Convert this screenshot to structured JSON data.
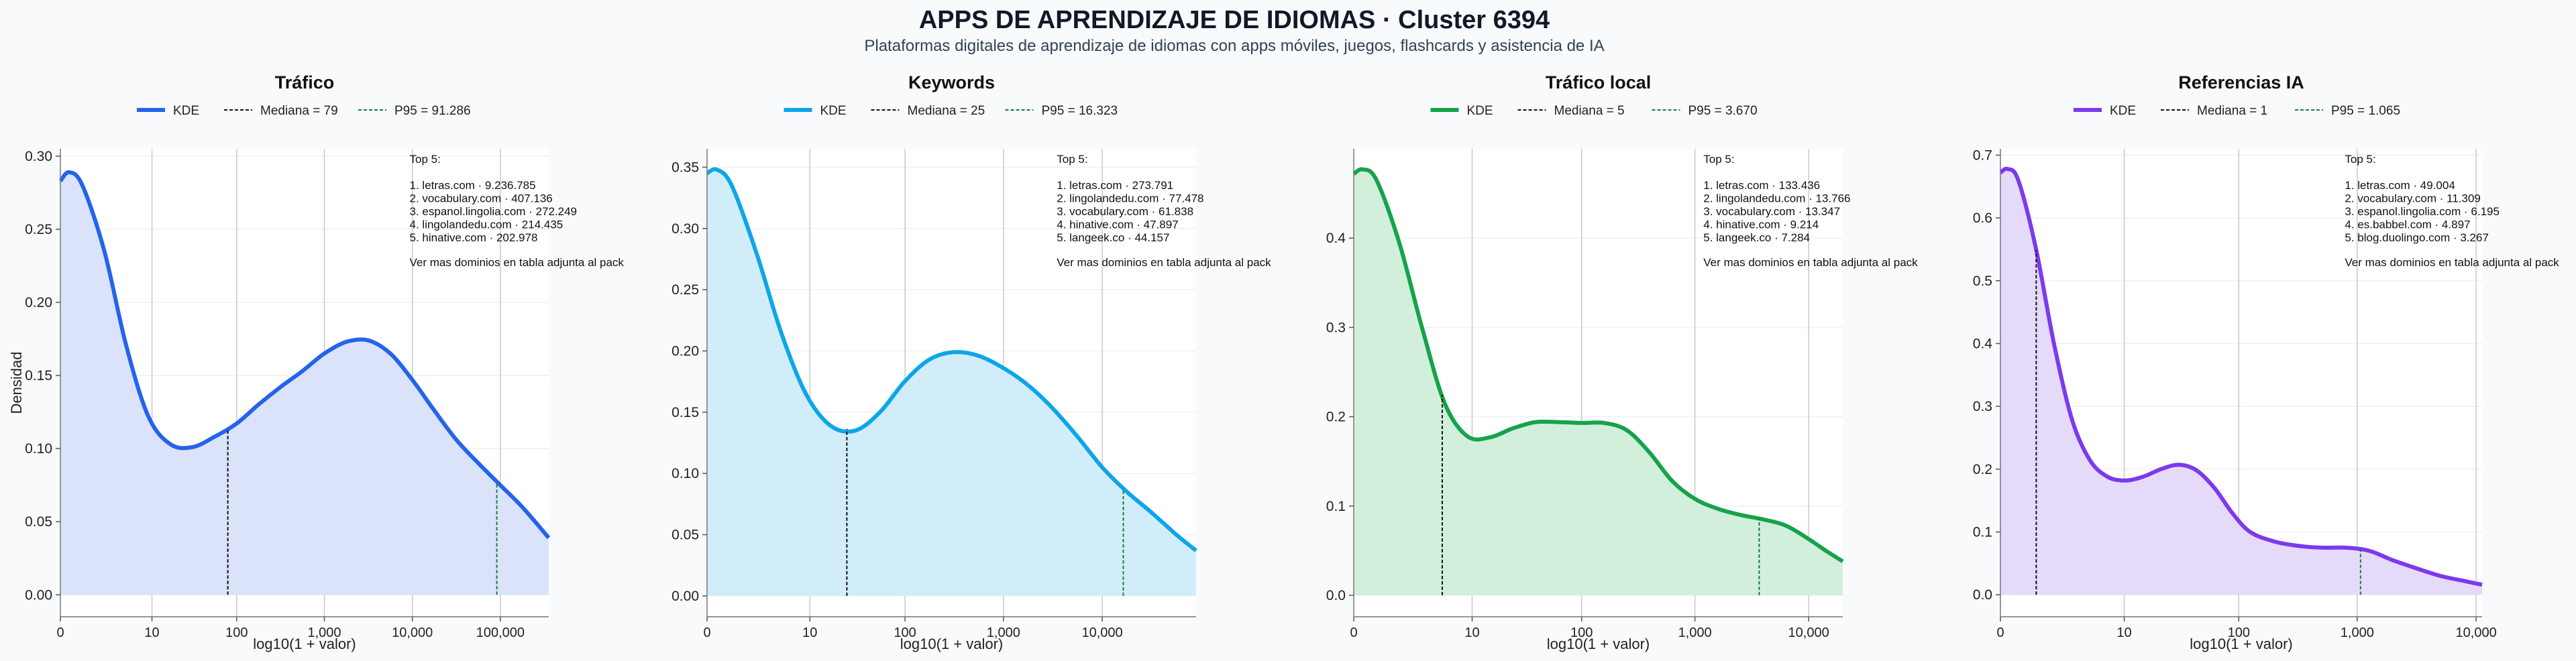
{
  "figure": {
    "title": "APPS DE APRENDIZAJE DE IDIOMAS · Cluster 6394",
    "subtitle": "Plataformas digitales de aprendizaje de idiomas con apps móviles, juegos, flashcards y asistencia de IA"
  },
  "chart_data": [
    {
      "type": "area",
      "title": "Tráfico",
      "xlabel": "log10(1 + valor)",
      "ylabel": "Densidad",
      "color": "#2563eb",
      "fill": "#dbe3fb",
      "xlim": [
        0,
        5.55
      ],
      "ylim": [
        -0.015,
        0.305
      ],
      "xticks": [
        {
          "v": 0,
          "label": "0"
        },
        {
          "v": 1.041,
          "label": "10"
        },
        {
          "v": 2.004,
          "label": "100"
        },
        {
          "v": 3.0,
          "label": "1,000"
        },
        {
          "v": 4.0,
          "label": "10,000"
        },
        {
          "v": 5.0,
          "label": "100,000"
        }
      ],
      "yticks": [
        {
          "v": 0,
          "label": "0.00"
        },
        {
          "v": 0.05,
          "label": "0.05"
        },
        {
          "v": 0.1,
          "label": "0.10"
        },
        {
          "v": 0.15,
          "label": "0.15"
        },
        {
          "v": 0.2,
          "label": "0.20"
        },
        {
          "v": 0.25,
          "label": "0.25"
        },
        {
          "v": 0.3,
          "label": "0.30"
        }
      ],
      "x": [
        0,
        0.1,
        0.25,
        0.5,
        0.75,
        1.0,
        1.25,
        1.5,
        1.75,
        2.0,
        2.25,
        2.5,
        2.75,
        3.0,
        3.25,
        3.5,
        3.75,
        4.0,
        4.25,
        4.5,
        4.75,
        5.0,
        5.25,
        5.55
      ],
      "y": [
        0.283,
        0.289,
        0.28,
        0.235,
        0.17,
        0.122,
        0.103,
        0.101,
        0.108,
        0.117,
        0.13,
        0.142,
        0.153,
        0.165,
        0.173,
        0.174,
        0.165,
        0.147,
        0.126,
        0.106,
        0.09,
        0.075,
        0.06,
        0.039
      ],
      "legend": {
        "kde": "KDE",
        "median": "Mediana = 79",
        "p95": "P95 = 91.286"
      },
      "median_x": 1.903,
      "p95_x": 4.96,
      "p95_color": "#15803d",
      "top_title": "Top 5:",
      "top": [
        "1. letras.com · 9.236.785",
        "2. vocabulary.com · 407.136",
        "3. espanol.lingolia.com · 272.249",
        "4. lingolandedu.com · 214.435",
        "5. hinative.com · 202.978"
      ],
      "note": "Ver mas dominios en tabla adjunta al pack"
    },
    {
      "type": "area",
      "title": "Keywords",
      "xlabel": "log10(1 + valor)",
      "ylabel": "",
      "color": "#0ea5e9",
      "fill": "#d2edfa",
      "xlim": [
        0,
        4.95
      ],
      "ylim": [
        -0.017,
        0.365
      ],
      "xticks": [
        {
          "v": 0,
          "label": "0"
        },
        {
          "v": 1.041,
          "label": "10"
        },
        {
          "v": 2.004,
          "label": "100"
        },
        {
          "v": 3.0,
          "label": "1,000"
        },
        {
          "v": 4.0,
          "label": "10,000"
        }
      ],
      "yticks": [
        {
          "v": 0,
          "label": "0.00"
        },
        {
          "v": 0.05,
          "label": "0.05"
        },
        {
          "v": 0.1,
          "label": "0.10"
        },
        {
          "v": 0.15,
          "label": "0.15"
        },
        {
          "v": 0.2,
          "label": "0.20"
        },
        {
          "v": 0.25,
          "label": "0.25"
        },
        {
          "v": 0.3,
          "label": "0.30"
        },
        {
          "v": 0.35,
          "label": "0.35"
        }
      ],
      "x": [
        0,
        0.1,
        0.25,
        0.5,
        0.75,
        1.0,
        1.25,
        1.5,
        1.75,
        2.0,
        2.25,
        2.5,
        2.75,
        3.0,
        3.25,
        3.5,
        3.75,
        4.0,
        4.25,
        4.5,
        4.75,
        4.95
      ],
      "y": [
        0.345,
        0.348,
        0.335,
        0.28,
        0.215,
        0.165,
        0.139,
        0.135,
        0.15,
        0.175,
        0.193,
        0.199,
        0.196,
        0.186,
        0.172,
        0.153,
        0.13,
        0.105,
        0.085,
        0.068,
        0.05,
        0.037
      ],
      "legend": {
        "kde": "KDE",
        "median": "Mediana = 25",
        "p95": "P95 = 16.323"
      },
      "median_x": 1.415,
      "p95_x": 4.213,
      "p95_color": "#15803d",
      "top_title": "Top 5:",
      "top": [
        "1. letras.com · 273.791",
        "2. lingolandedu.com · 77.478",
        "3. vocabulary.com · 61.838",
        "4. hinative.com · 47.897",
        "5. langeek.co · 44.157"
      ],
      "note": "Ver mas dominios en tabla adjunta al pack"
    },
    {
      "type": "area",
      "title": "Tráfico local",
      "xlabel": "log10(1 + valor)",
      "ylabel": "",
      "color": "#16a34a",
      "fill": "#d2efdc",
      "xlim": [
        0,
        4.3
      ],
      "ylim": [
        -0.024,
        0.5
      ],
      "xticks": [
        {
          "v": 0,
          "label": "0"
        },
        {
          "v": 1.041,
          "label": "10"
        },
        {
          "v": 2.004,
          "label": "100"
        },
        {
          "v": 3.0,
          "label": "1,000"
        },
        {
          "v": 4.0,
          "label": "10,000"
        }
      ],
      "yticks": [
        {
          "v": 0,
          "label": "0.0"
        },
        {
          "v": 0.1,
          "label": "0.1"
        },
        {
          "v": 0.2,
          "label": "0.2"
        },
        {
          "v": 0.3,
          "label": "0.3"
        },
        {
          "v": 0.4,
          "label": "0.4"
        }
      ],
      "x": [
        0,
        0.08,
        0.2,
        0.4,
        0.6,
        0.8,
        1.0,
        1.2,
        1.4,
        1.6,
        1.8,
        2.0,
        2.2,
        2.4,
        2.6,
        2.8,
        3.0,
        3.2,
        3.4,
        3.6,
        3.8,
        4.0,
        4.15,
        4.3
      ],
      "y": [
        0.472,
        0.477,
        0.465,
        0.395,
        0.3,
        0.215,
        0.178,
        0.177,
        0.187,
        0.194,
        0.194,
        0.193,
        0.193,
        0.185,
        0.16,
        0.128,
        0.108,
        0.097,
        0.09,
        0.085,
        0.078,
        0.063,
        0.05,
        0.038
      ],
      "legend": {
        "kde": "KDE",
        "median": "Mediana = 5",
        "p95": "P95 = 3.670"
      },
      "median_x": 0.778,
      "p95_x": 3.565,
      "p95_color": "#15803d",
      "top_title": "Top 5:",
      "top": [
        "1. letras.com · 133.436",
        "2. lingolandedu.com · 13.766",
        "3. vocabulary.com · 13.347",
        "4. hinative.com · 9.214",
        "5. langeek.co · 7.284"
      ],
      "note": "Ver mas dominios en tabla adjunta al pack"
    },
    {
      "type": "area",
      "title": "Referencias IA",
      "xlabel": "log10(1 + valor)",
      "ylabel": "",
      "color": "#7c3aed",
      "fill": "#e5dafa",
      "xlim": [
        0,
        4.05
      ],
      "ylim": [
        -0.035,
        0.71
      ],
      "xticks": [
        {
          "v": 0,
          "label": "0"
        },
        {
          "v": 1.041,
          "label": "10"
        },
        {
          "v": 2.004,
          "label": "100"
        },
        {
          "v": 3.0,
          "label": "1,000"
        },
        {
          "v": 4.0,
          "label": "10,000"
        }
      ],
      "yticks": [
        {
          "v": 0,
          "label": "0.0"
        },
        {
          "v": 0.1,
          "label": "0.1"
        },
        {
          "v": 0.2,
          "label": "0.2"
        },
        {
          "v": 0.3,
          "label": "0.3"
        },
        {
          "v": 0.4,
          "label": "0.4"
        },
        {
          "v": 0.5,
          "label": "0.5"
        },
        {
          "v": 0.6,
          "label": "0.6"
        },
        {
          "v": 0.7,
          "label": "0.7"
        }
      ],
      "x": [
        0,
        0.06,
        0.15,
        0.3,
        0.45,
        0.6,
        0.75,
        0.9,
        1.05,
        1.2,
        1.35,
        1.5,
        1.65,
        1.8,
        1.95,
        2.1,
        2.3,
        2.5,
        2.7,
        2.9,
        3.1,
        3.3,
        3.5,
        3.7,
        3.9,
        4.05
      ],
      "y": [
        0.672,
        0.678,
        0.66,
        0.55,
        0.4,
        0.28,
        0.215,
        0.188,
        0.182,
        0.188,
        0.2,
        0.207,
        0.198,
        0.17,
        0.13,
        0.1,
        0.085,
        0.078,
        0.075,
        0.075,
        0.07,
        0.055,
        0.042,
        0.03,
        0.022,
        0.016
      ],
      "legend": {
        "kde": "KDE",
        "median": "Mediana = 1",
        "p95": "P95 = 1.065"
      },
      "median_x": 0.301,
      "p95_x": 3.028,
      "p95_color": "#15803d",
      "top_title": "Top 5:",
      "top": [
        "1. letras.com · 49.004",
        "2. vocabulary.com · 11.309",
        "3. espanol.lingolia.com · 6.195",
        "4. es.babbel.com · 4.897",
        "5. blog.duolingo.com · 3.267"
      ],
      "note": "Ver mas dominios en tabla adjunta al pack"
    }
  ]
}
